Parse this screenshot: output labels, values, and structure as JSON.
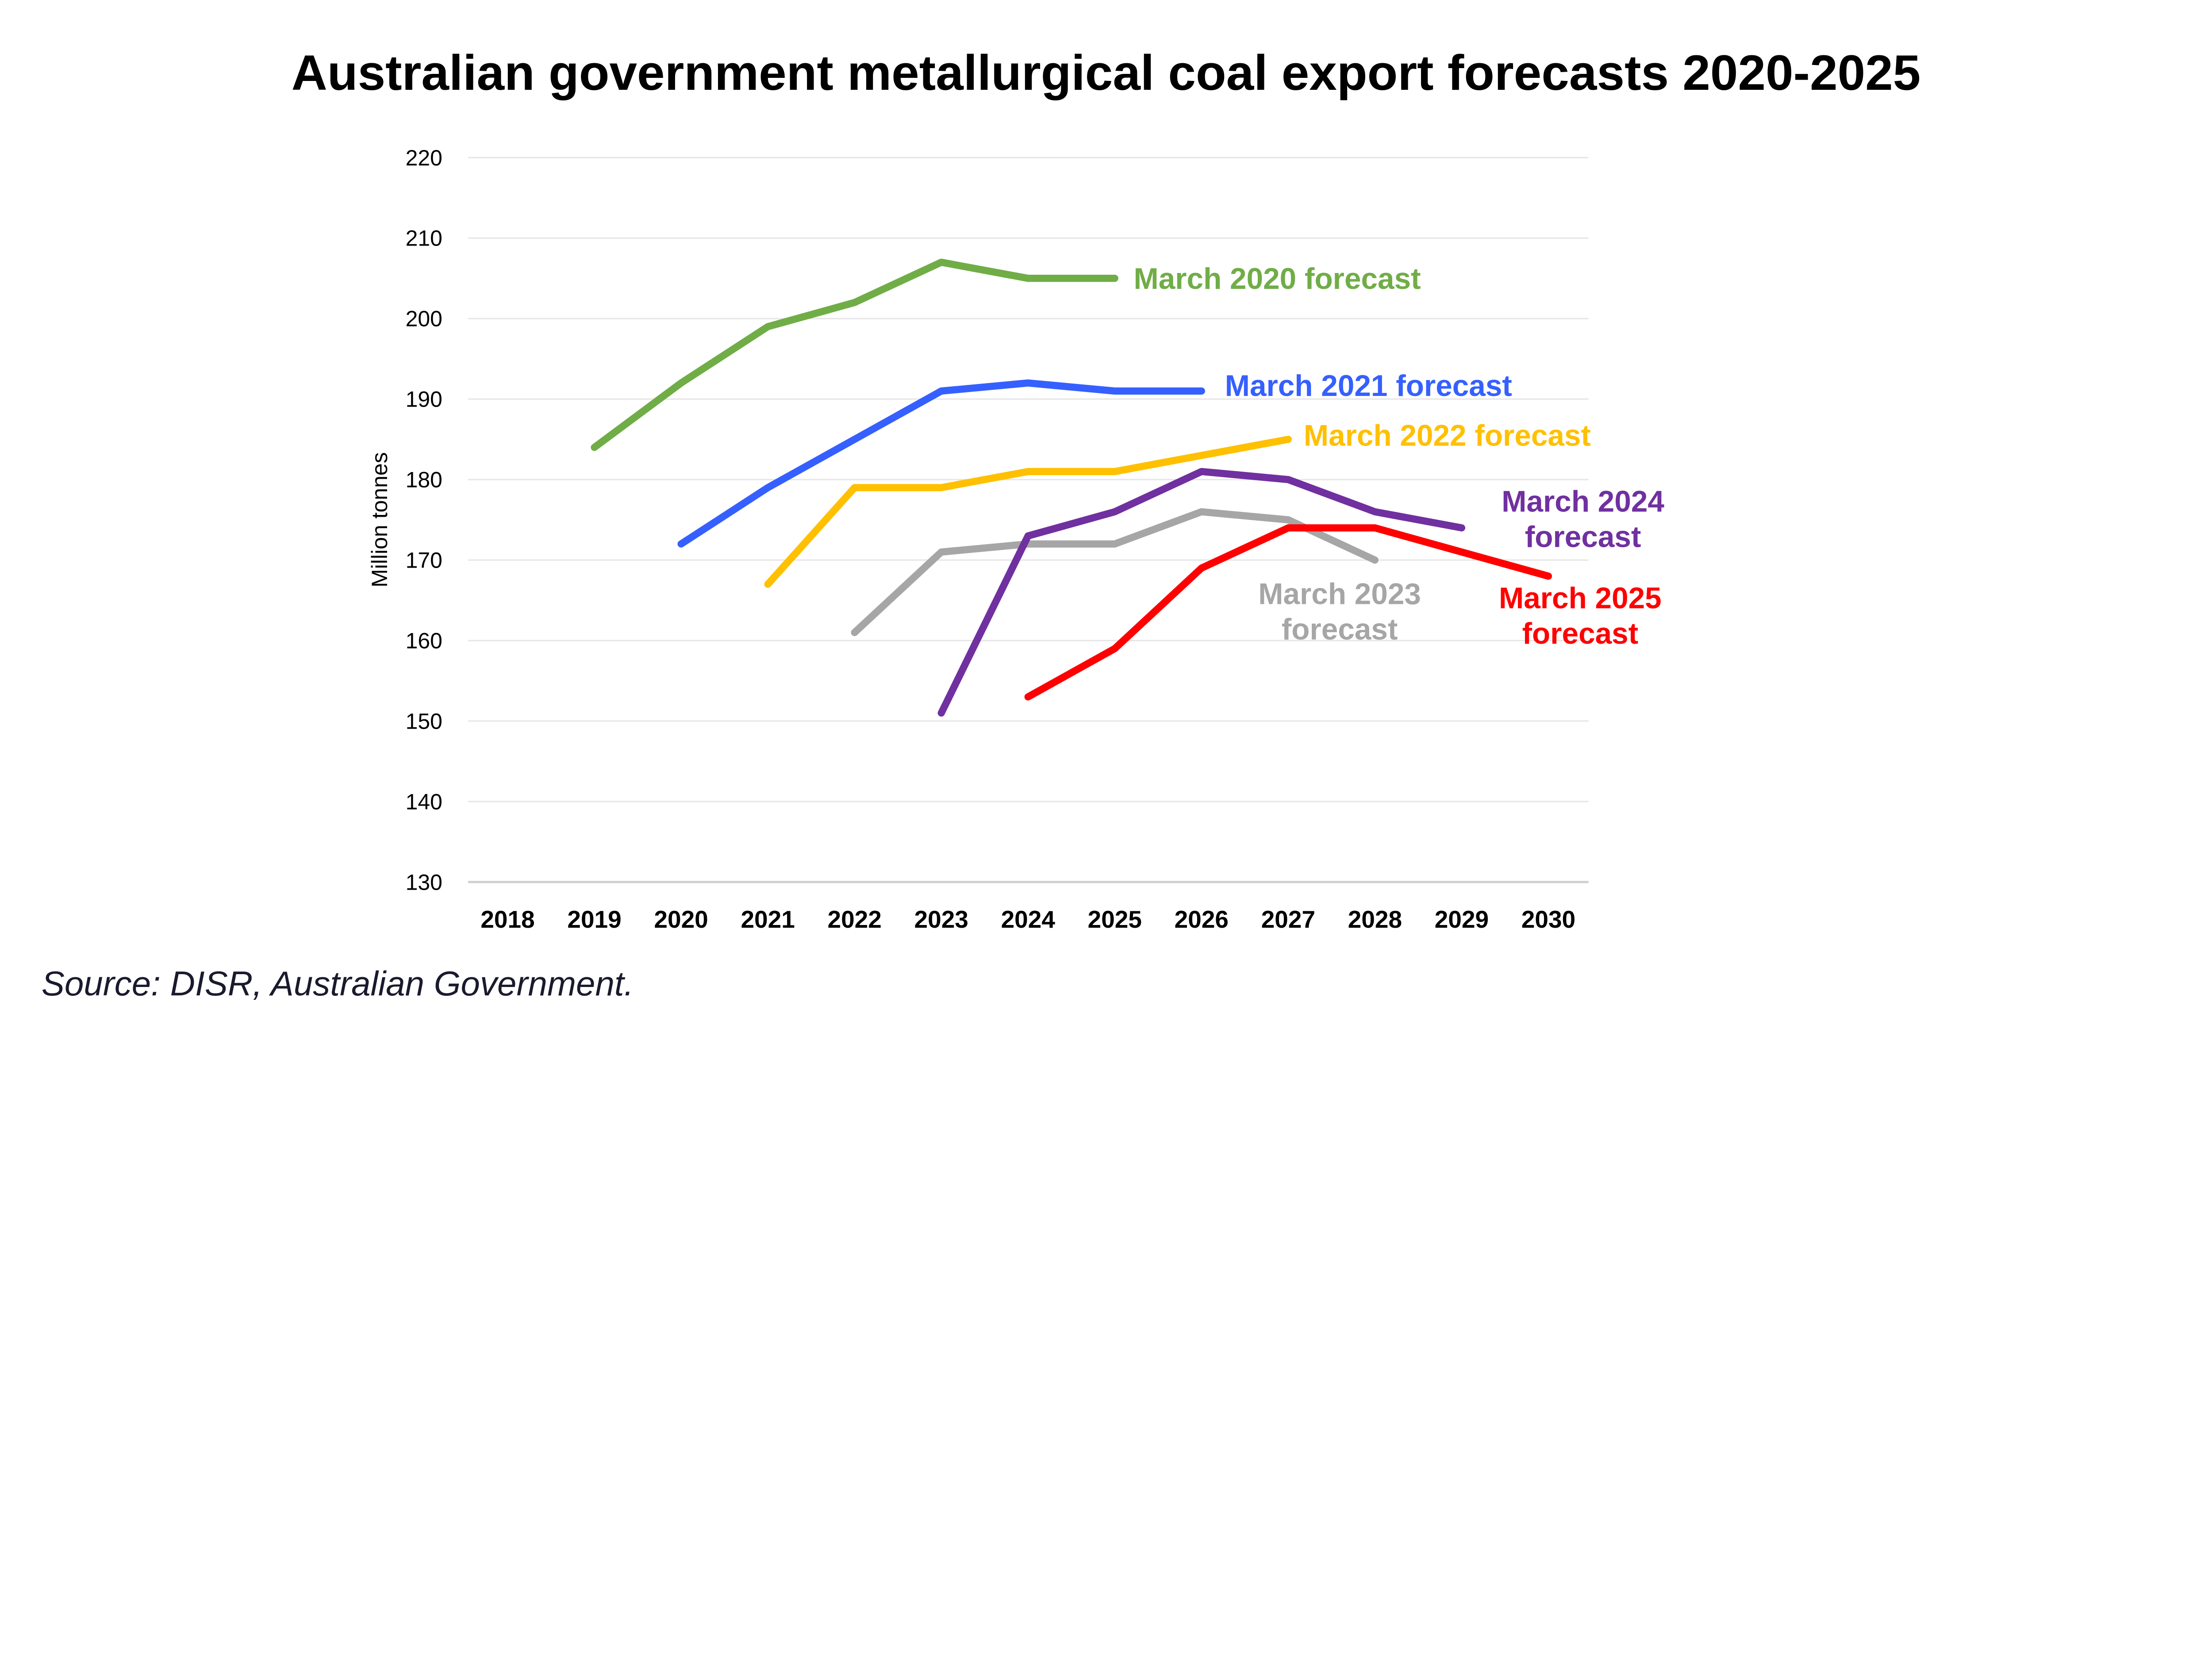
{
  "chart_data": {
    "type": "line",
    "title": "Australian government metallurgical coal export forecasts 2020-2025",
    "xlabel": "",
    "ylabel": "Million tonnes",
    "categories": [
      "2018",
      "2019",
      "2020",
      "2021",
      "2022",
      "2023",
      "2024",
      "2025",
      "2026",
      "2027",
      "2028",
      "2029",
      "2030"
    ],
    "yticks": [
      "130",
      "140",
      "150",
      "160",
      "170",
      "180",
      "190",
      "200",
      "210",
      "220"
    ],
    "ylim": [
      130,
      220
    ],
    "grid": true,
    "legend": "direct labels at line ends",
    "series": [
      {
        "name": "March 2020 forecast",
        "label_lines": [
          "March 2020 forecast"
        ],
        "color": "#70AD47",
        "x": [
          "2019",
          "2020",
          "2021",
          "2022",
          "2023",
          "2024",
          "2025"
        ],
        "values": [
          184,
          192,
          199,
          202,
          207,
          205,
          205
        ]
      },
      {
        "name": "March 2021 forecast",
        "label_lines": [
          "March 2021 forecast"
        ],
        "color": "#3560FF",
        "x": [
          "2020",
          "2021",
          "2022",
          "2023",
          "2024",
          "2025",
          "2026"
        ],
        "values": [
          172,
          179,
          185,
          191,
          192,
          191,
          191
        ]
      },
      {
        "name": "March 2022 forecast",
        "label_lines": [
          "March 2022 forecast"
        ],
        "color": "#FFC000",
        "x": [
          "2021",
          "2022",
          "2023",
          "2024",
          "2025",
          "2026",
          "2027"
        ],
        "values": [
          167,
          179,
          179,
          181,
          181,
          183,
          185
        ]
      },
      {
        "name": "March 2023 forecast",
        "label_lines": [
          "March 2023",
          "forecast"
        ],
        "color": "#A6A6A6",
        "x": [
          "2022",
          "2023",
          "2024",
          "2025",
          "2026",
          "2027",
          "2028"
        ],
        "values": [
          161,
          171,
          172,
          172,
          176,
          175,
          170
        ]
      },
      {
        "name": "March 2024 forecast",
        "label_lines": [
          "March 2024",
          "forecast"
        ],
        "color": "#7030A0",
        "x": [
          "2023",
          "2024",
          "2025",
          "2026",
          "2027",
          "2028",
          "2029"
        ],
        "values": [
          151,
          173,
          176,
          181,
          180,
          176,
          174
        ]
      },
      {
        "name": "March 2025 forecast",
        "label_lines": [
          "March 2025",
          "forecast"
        ],
        "color": "#FF0000",
        "x": [
          "2024",
          "2025",
          "2026",
          "2027",
          "2028",
          "2029",
          "2030"
        ],
        "values": [
          153,
          159,
          169,
          174,
          174,
          171,
          168
        ]
      }
    ]
  },
  "source": "Source: DISR, Australian Government."
}
